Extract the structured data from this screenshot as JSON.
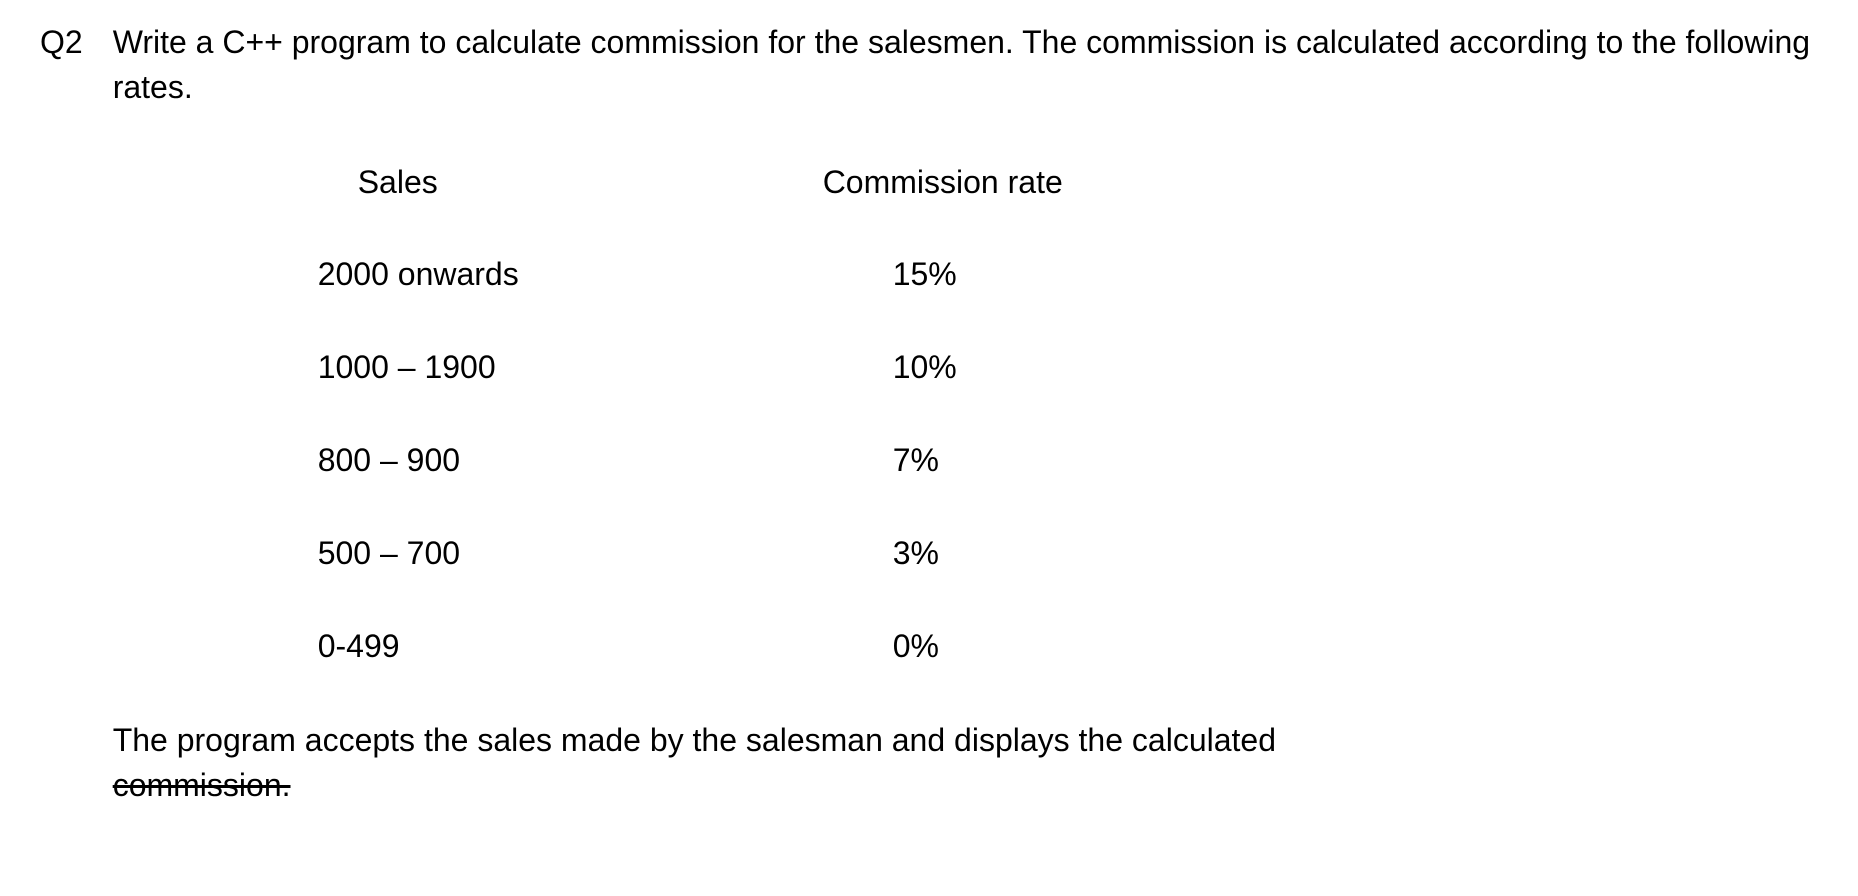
{
  "question": {
    "label": "Q2",
    "text": "Write a C++ program to calculate commission for the salesmen. The commission is calculated according to the following rates."
  },
  "table": {
    "headers": {
      "sales": "Sales",
      "rate": "Commission rate"
    },
    "rows": [
      {
        "sales": "2000 onwards",
        "rate": "15%"
      },
      {
        "sales": "1000 – 1900",
        "rate": "10%"
      },
      {
        "sales": "800 – 900",
        "rate": "7%"
      },
      {
        "sales": "500 – 700",
        "rate": "3%"
      },
      {
        "sales": "0-499",
        "rate": "0%"
      }
    ]
  },
  "footer": {
    "line1": "The program accepts the sales made by the salesman and displays the calculated",
    "line2_struck": "commission."
  }
}
